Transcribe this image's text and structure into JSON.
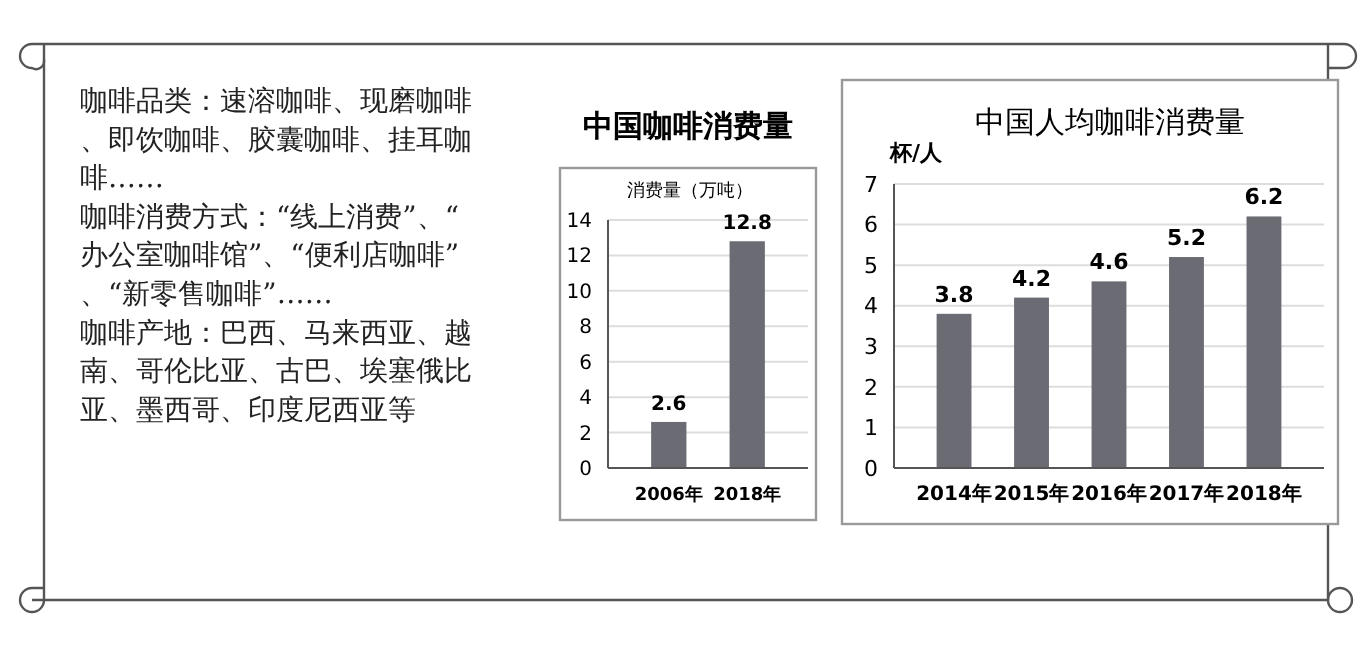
{
  "chart_data": [
    {
      "type": "other",
      "annotations": [
        "咖啡品类：速溶咖啡、现磨咖啡、即饮咖啡、胶囊咖啡、挂耳咖啡……",
        "咖啡消费方式：“线上消费”、“办公室咖啡馆”、“便利店咖啡”、“新零售咖啡”……",
        "咖啡产地：巴西、马来西亚、越南、哥伦比亚、古巴、埃塞俄比亚、墨西哥、印度尼西亚等"
      ]
    },
    {
      "type": "bar",
      "title": "中国咖啡消费量",
      "ylabel": "消费量（万吨）",
      "categories": [
        "2006年",
        "2018年"
      ],
      "values": [
        2.6,
        12.8
      ],
      "color": "#6b6b73",
      "ylim": [
        0,
        14
      ],
      "yticks": [
        0,
        2,
        4,
        6,
        8,
        10,
        12,
        14
      ],
      "grid": "y",
      "data_labels": true
    },
    {
      "type": "bar",
      "title": "中国人均咖啡消费量",
      "ylabel": "杯/人",
      "categories": [
        "2014年",
        "2015年",
        "2016年",
        "2017年",
        "2018年"
      ],
      "values": [
        3.8,
        4.2,
        4.6,
        5.2,
        6.2
      ],
      "color": "#6b6b73",
      "ylim": [
        0,
        7
      ],
      "yticks": [
        0,
        1,
        2,
        3,
        4,
        5,
        6,
        7
      ],
      "grid": "y",
      "data_labels": true
    }
  ]
}
